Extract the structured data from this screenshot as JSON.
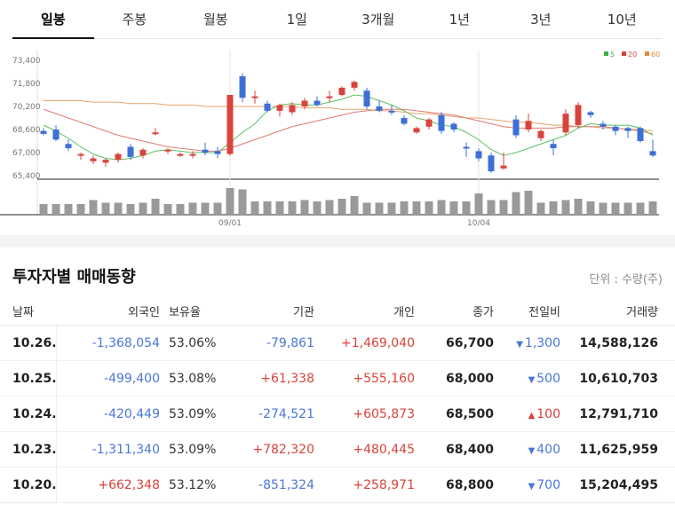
{
  "tabs": [
    "일봉",
    "주봉",
    "월봉",
    "1일",
    "3개월",
    "1년",
    "3년",
    "10년"
  ],
  "active_tab": 0,
  "chart_data": {
    "type": "candlestick",
    "y_ticks": [
      "73,400",
      "71,800",
      "70,200",
      "68,600",
      "67,000",
      "65,400"
    ],
    "ylim": [
      65400,
      73400
    ],
    "x_labels": [
      {
        "index": 15,
        "label": "09/01"
      },
      {
        "index": 35,
        "label": "10/04"
      }
    ],
    "legend": [
      {
        "label": "5",
        "color": "#3cb14a"
      },
      {
        "label": "20",
        "color": "#d9433b"
      },
      {
        "label": "60",
        "color": "#e08a3c"
      }
    ],
    "candles": [
      {
        "o": 68500,
        "h": 68700,
        "l": 68200,
        "c": 68300
      },
      {
        "o": 68600,
        "h": 68900,
        "l": 67800,
        "c": 67900
      },
      {
        "o": 67600,
        "h": 67900,
        "l": 67100,
        "c": 67300
      },
      {
        "o": 66800,
        "h": 67000,
        "l": 66500,
        "c": 66900
      },
      {
        "o": 66400,
        "h": 66800,
        "l": 66200,
        "c": 66600
      },
      {
        "o": 66300,
        "h": 66600,
        "l": 66000,
        "c": 66500
      },
      {
        "o": 66500,
        "h": 67000,
        "l": 66300,
        "c": 66900
      },
      {
        "o": 67400,
        "h": 67600,
        "l": 66500,
        "c": 66700
      },
      {
        "o": 66800,
        "h": 67300,
        "l": 66600,
        "c": 67200
      },
      {
        "o": 68300,
        "h": 68700,
        "l": 68200,
        "c": 68400
      },
      {
        "o": 67100,
        "h": 67300,
        "l": 66900,
        "c": 67200
      },
      {
        "o": 66900,
        "h": 67000,
        "l": 66700,
        "c": 66900
      },
      {
        "o": 66800,
        "h": 67100,
        "l": 66600,
        "c": 66900
      },
      {
        "o": 67200,
        "h": 67700,
        "l": 66800,
        "c": 67000
      },
      {
        "o": 67100,
        "h": 67400,
        "l": 66600,
        "c": 66900
      },
      {
        "o": 66900,
        "h": 71000,
        "l": 66800,
        "c": 71000
      },
      {
        "o": 72300,
        "h": 72500,
        "l": 70500,
        "c": 70800
      },
      {
        "o": 70800,
        "h": 71300,
        "l": 70400,
        "c": 70900
      },
      {
        "o": 70400,
        "h": 70600,
        "l": 69800,
        "c": 69900
      },
      {
        "o": 69900,
        "h": 70400,
        "l": 69500,
        "c": 70300
      },
      {
        "o": 69800,
        "h": 70500,
        "l": 69600,
        "c": 70300
      },
      {
        "o": 70200,
        "h": 70800,
        "l": 70000,
        "c": 70600
      },
      {
        "o": 70600,
        "h": 70900,
        "l": 70200,
        "c": 70300
      },
      {
        "o": 70800,
        "h": 71300,
        "l": 70500,
        "c": 70900
      },
      {
        "o": 71000,
        "h": 71600,
        "l": 70900,
        "c": 71500
      },
      {
        "o": 71500,
        "h": 72000,
        "l": 71300,
        "c": 71900
      },
      {
        "o": 71300,
        "h": 71500,
        "l": 70000,
        "c": 70200
      },
      {
        "o": 70200,
        "h": 70600,
        "l": 69800,
        "c": 69900
      },
      {
        "o": 69900,
        "h": 70300,
        "l": 69600,
        "c": 69800
      },
      {
        "o": 69400,
        "h": 69600,
        "l": 68900,
        "c": 69000
      },
      {
        "o": 68400,
        "h": 68800,
        "l": 68300,
        "c": 68700
      },
      {
        "o": 68800,
        "h": 69400,
        "l": 68600,
        "c": 69300
      },
      {
        "o": 69600,
        "h": 69800,
        "l": 68300,
        "c": 68500
      },
      {
        "o": 69000,
        "h": 69100,
        "l": 68400,
        "c": 68600
      },
      {
        "o": 67400,
        "h": 67700,
        "l": 66700,
        "c": 67300
      },
      {
        "o": 67100,
        "h": 67300,
        "l": 66400,
        "c": 66600
      },
      {
        "o": 66800,
        "h": 67000,
        "l": 65600,
        "c": 65700
      },
      {
        "o": 65900,
        "h": 67000,
        "l": 65800,
        "c": 66100
      },
      {
        "o": 69300,
        "h": 69600,
        "l": 68000,
        "c": 68200
      },
      {
        "o": 68600,
        "h": 69700,
        "l": 68400,
        "c": 69200
      },
      {
        "o": 68000,
        "h": 68600,
        "l": 67800,
        "c": 68500
      },
      {
        "o": 67600,
        "h": 67900,
        "l": 66800,
        "c": 67300
      },
      {
        "o": 68400,
        "h": 70000,
        "l": 68200,
        "c": 69700
      },
      {
        "o": 68900,
        "h": 70500,
        "l": 68700,
        "c": 70300
      },
      {
        "o": 69800,
        "h": 69900,
        "l": 69400,
        "c": 69600
      },
      {
        "o": 69000,
        "h": 69200,
        "l": 68600,
        "c": 68800
      },
      {
        "o": 68800,
        "h": 68900,
        "l": 68200,
        "c": 68500
      },
      {
        "o": 68700,
        "h": 68800,
        "l": 68000,
        "c": 68500
      },
      {
        "o": 68700,
        "h": 68800,
        "l": 67700,
        "c": 67800
      },
      {
        "o": 67100,
        "h": 67900,
        "l": 66700,
        "c": 66800
      }
    ],
    "ma5": [
      68900,
      68500,
      68000,
      67400,
      66900,
      66600,
      66500,
      66600,
      66800,
      67100,
      67200,
      67100,
      67000,
      67000,
      67000,
      67700,
      68400,
      69000,
      69900,
      70300,
      70400,
      70300,
      70300,
      70500,
      70700,
      71000,
      70900,
      70600,
      70300,
      69900,
      69400,
      69200,
      68900,
      68800,
      68400,
      67900,
      67200,
      66800,
      67000,
      67300,
      67600,
      67900,
      68200,
      68700,
      69000,
      68900,
      68900,
      68900,
      68700,
      68200
    ],
    "ma20": [
      70000,
      69700,
      69400,
      69100,
      68800,
      68500,
      68200,
      68000,
      67800,
      67600,
      67400,
      67300,
      67200,
      67100,
      67100,
      67300,
      67600,
      67900,
      68200,
      68500,
      68800,
      69000,
      69200,
      69400,
      69600,
      69800,
      69900,
      70000,
      70000,
      70000,
      69900,
      69800,
      69700,
      69600,
      69400,
      69200,
      69000,
      68800,
      68700,
      68700,
      68700,
      68700,
      68800,
      68800,
      68800,
      68800,
      68700,
      68600,
      68500,
      68300
    ],
    "ma60": [
      70600,
      70600,
      70600,
      70600,
      70500,
      70500,
      70500,
      70400,
      70400,
      70400,
      70300,
      70300,
      70300,
      70200,
      70200,
      70200,
      70200,
      70200,
      70200,
      70200,
      70200,
      70100,
      70100,
      70100,
      70000,
      70000,
      70000,
      69900,
      69900,
      69800,
      69700,
      69700,
      69600,
      69500,
      69400,
      69400,
      69300,
      69200,
      69100,
      69100,
      69000,
      68900,
      68900,
      68800,
      68800,
      68700,
      68700,
      68600,
      68600,
      68500
    ],
    "volumes": [
      40,
      40,
      40,
      40,
      55,
      45,
      45,
      40,
      45,
      60,
      40,
      40,
      45,
      45,
      45,
      100,
      95,
      50,
      50,
      50,
      50,
      55,
      50,
      55,
      60,
      70,
      45,
      45,
      45,
      50,
      50,
      50,
      55,
      50,
      50,
      80,
      55,
      55,
      85,
      90,
      45,
      50,
      55,
      60,
      50,
      45,
      45,
      45,
      45,
      50
    ]
  },
  "section": {
    "title": "투자자별 매매동향",
    "unit": "단위 : 수량(주)"
  },
  "table": {
    "headers": {
      "date": "날짜",
      "foreign": "외국인",
      "holding": "보유율",
      "institution": "기관",
      "individual": "개인",
      "close": "종가",
      "change": "전일비",
      "volume": "거래량"
    },
    "rows": [
      {
        "date": "10.26.",
        "foreign": "-1,368,054",
        "holding": "53.06%",
        "institution": "-79,861",
        "individual": "+1,469,040",
        "close": "66,700",
        "change_dir": "down",
        "change": "1,300",
        "volume": "14,588,126"
      },
      {
        "date": "10.25.",
        "foreign": "-499,400",
        "holding": "53.08%",
        "institution": "+61,338",
        "individual": "+555,160",
        "close": "68,000",
        "change_dir": "down",
        "change": "500",
        "volume": "10,610,703"
      },
      {
        "date": "10.24.",
        "foreign": "-420,449",
        "holding": "53.09%",
        "institution": "-274,521",
        "individual": "+605,873",
        "close": "68,500",
        "change_dir": "up",
        "change": "100",
        "volume": "12,791,710"
      },
      {
        "date": "10.23.",
        "foreign": "-1,311,340",
        "holding": "53.09%",
        "institution": "+782,320",
        "individual": "+480,445",
        "close": "68,400",
        "change_dir": "down",
        "change": "400",
        "volume": "11,625,959"
      },
      {
        "date": "10.20.",
        "foreign": "+662,348",
        "holding": "53.12%",
        "institution": "-851,324",
        "individual": "+258,971",
        "close": "68,800",
        "change_dir": "down",
        "change": "700",
        "volume": "15,204,495"
      }
    ]
  }
}
